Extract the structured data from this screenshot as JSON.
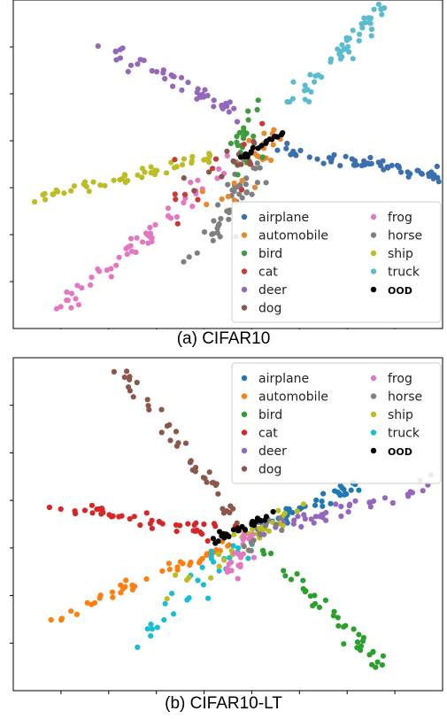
{
  "chart_data": [
    {
      "type": "scatter",
      "caption": "(a) CIFAR10",
      "legend_position": "lower-right",
      "grid": false,
      "xlim": [
        0,
        100
      ],
      "ylim": [
        0,
        100
      ],
      "legend": [
        {
          "name": "airplane",
          "color": "#3a6fb0"
        },
        {
          "name": "automobile",
          "color": "#e8892c"
        },
        {
          "name": "bird",
          "color": "#3e9b3e"
        },
        {
          "name": "cat",
          "color": "#c83a33"
        },
        {
          "name": "deer",
          "color": "#9467bd"
        },
        {
          "name": "dog",
          "color": "#8c564b"
        },
        {
          "name": "frog",
          "color": "#e377c2"
        },
        {
          "name": "horse",
          "color": "#7f7f7f"
        },
        {
          "name": "ship",
          "color": "#bcbd22"
        },
        {
          "name": "truck",
          "color": "#5bbccf"
        },
        {
          "name": "OOD",
          "color": "#000000"
        }
      ],
      "series": [
        {
          "name": "airplane",
          "from": [
            62,
            54
          ],
          "to": [
            99,
            47
          ],
          "n": 55,
          "spread": 1.2
        },
        {
          "name": "truck",
          "from": [
            65,
            68
          ],
          "to": [
            87,
            99
          ],
          "n": 50,
          "spread": 1.3
        },
        {
          "name": "deer",
          "from": [
            22,
            86
          ],
          "to": [
            52,
            66
          ],
          "n": 45,
          "spread": 1.2
        },
        {
          "name": "ship",
          "from": [
            5,
            40
          ],
          "to": [
            46,
            52
          ],
          "n": 50,
          "spread": 1.0
        },
        {
          "name": "frog",
          "from": [
            10,
            5
          ],
          "to": [
            52,
            52
          ],
          "n": 55,
          "spread": 1.2
        },
        {
          "name": "horse",
          "from": [
            42,
            20
          ],
          "to": [
            58,
            52
          ],
          "n": 45,
          "spread": 1.5
        },
        {
          "name": "automobile",
          "from": [
            48,
            36
          ],
          "to": [
            60,
            60
          ],
          "n": 25,
          "spread": 2.0
        },
        {
          "name": "bird",
          "from": [
            53,
            50
          ],
          "to": [
            57,
            66
          ],
          "n": 25,
          "spread": 2.0
        },
        {
          "name": "cat",
          "from": [
            30,
            36
          ],
          "to": [
            58,
            56
          ],
          "n": 12,
          "spread": 5.0
        },
        {
          "name": "dog",
          "from": [
            45,
            44
          ],
          "to": [
            55,
            56
          ],
          "n": 12,
          "spread": 2.5
        },
        {
          "name": "OOD",
          "from": [
            52,
            51
          ],
          "to": [
            63,
            60
          ],
          "n": 22,
          "spread": 0.4
        }
      ]
    },
    {
      "type": "scatter",
      "caption": "(b) CIFAR10-LT",
      "legend_position": "upper-right",
      "grid": false,
      "xlim": [
        0,
        100
      ],
      "ylim": [
        0,
        100
      ],
      "legend": [
        {
          "name": "airplane",
          "color": "#1f77b4"
        },
        {
          "name": "automobile",
          "color": "#ff7f0e"
        },
        {
          "name": "bird",
          "color": "#2ca02c"
        },
        {
          "name": "cat",
          "color": "#d62728"
        },
        {
          "name": "deer",
          "color": "#9467bd"
        },
        {
          "name": "dog",
          "color": "#8c564b"
        },
        {
          "name": "frog",
          "color": "#e377c2"
        },
        {
          "name": "horse",
          "color": "#7f7f7f"
        },
        {
          "name": "ship",
          "color": "#bcbd22"
        },
        {
          "name": "truck",
          "color": "#17becf"
        },
        {
          "name": "OOD",
          "color": "#000000"
        }
      ],
      "series": [
        {
          "name": "dog",
          "from": [
            23,
            99
          ],
          "to": [
            55,
            47
          ],
          "n": 45,
          "spread": 1.2
        },
        {
          "name": "cat",
          "from": [
            5,
            56
          ],
          "to": [
            54,
            47
          ],
          "n": 45,
          "spread": 1.2
        },
        {
          "name": "automobile",
          "from": [
            7,
            20
          ],
          "to": [
            52,
            45
          ],
          "n": 45,
          "spread": 0.9
        },
        {
          "name": "airplane",
          "from": [
            56,
            48
          ],
          "to": [
            80,
            62
          ],
          "n": 40,
          "spread": 1.0
        },
        {
          "name": "deer",
          "from": [
            55,
            47
          ],
          "to": [
            98,
            62
          ],
          "n": 40,
          "spread": 1.3
        },
        {
          "name": "bird",
          "from": [
            57,
            44
          ],
          "to": [
            88,
            5
          ],
          "n": 40,
          "spread": 1.2
        },
        {
          "name": "truck",
          "from": [
            30,
            15
          ],
          "to": [
            55,
            46
          ],
          "n": 30,
          "spread": 2.0
        },
        {
          "name": "ship",
          "from": [
            35,
            30
          ],
          "to": [
            66,
            55
          ],
          "n": 30,
          "spread": 1.8
        },
        {
          "name": "frog",
          "from": [
            50,
            34
          ],
          "to": [
            56,
            50
          ],
          "n": 25,
          "spread": 1.5
        },
        {
          "name": "horse",
          "from": [
            54,
            42
          ],
          "to": [
            62,
            52
          ],
          "n": 15,
          "spread": 1.5
        },
        {
          "name": "OOD",
          "from": [
            45,
            44
          ],
          "to": [
            60,
            53
          ],
          "n": 28,
          "spread": 0.6
        }
      ]
    }
  ]
}
